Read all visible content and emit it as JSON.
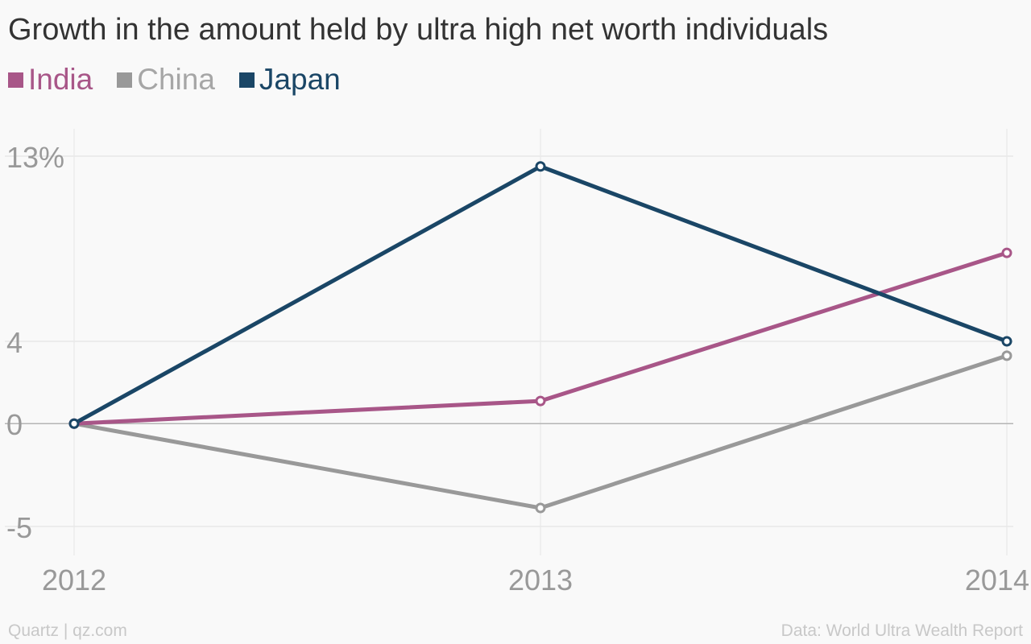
{
  "chart_data": {
    "type": "line",
    "title": "Growth in the amount held by ultra high net worth individuals",
    "x": [
      "2012",
      "2013",
      "2014"
    ],
    "series": [
      {
        "name": "India",
        "color": "#a85688",
        "values": [
          0,
          1.1,
          8.3
        ]
      },
      {
        "name": "China",
        "color": "#999999",
        "values": [
          0,
          -4.1,
          3.3
        ]
      },
      {
        "name": "Japan",
        "color": "#1a4666",
        "values": [
          0,
          12.5,
          4.0
        ]
      }
    ],
    "y_ticks": [
      {
        "value": 13,
        "label": "13%"
      },
      {
        "value": 4,
        "label": "4"
      },
      {
        "value": 0,
        "label": "0"
      },
      {
        "value": -5,
        "label": "-5"
      }
    ],
    "ylim": [
      -5,
      13
    ],
    "grid": true,
    "legend_position": "top-left"
  },
  "footer": {
    "source_left": "Quartz | qz.com",
    "source_right": "Data: World Ultra Wealth Report"
  }
}
